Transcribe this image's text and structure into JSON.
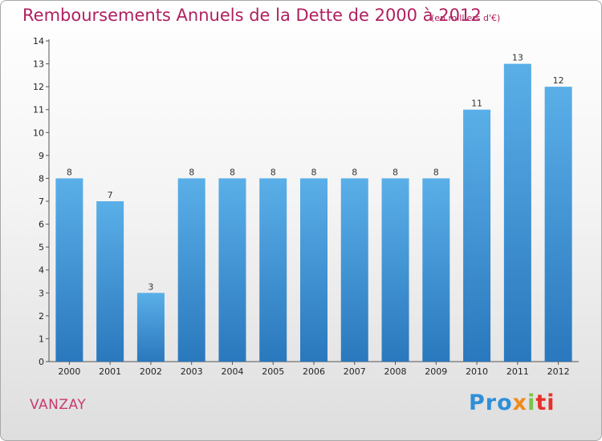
{
  "header": {
    "title": "Remboursements Annuels de la Dette de 2000 à 2012",
    "subtitle": "(en milliers d'€)"
  },
  "footer": {
    "commune": "VANZAY",
    "logo": {
      "p1": "Pro",
      "p2": "x",
      "p3": "i",
      "p4": "ti"
    }
  },
  "chart_data": {
    "type": "bar",
    "title": "Remboursements Annuels de la Dette de 2000 à 2012",
    "subtitle": "(en milliers d'€)",
    "categories": [
      "2000",
      "2001",
      "2002",
      "2003",
      "2004",
      "2005",
      "2006",
      "2007",
      "2008",
      "2009",
      "2010",
      "2011",
      "2012"
    ],
    "values": [
      8,
      7,
      3,
      8,
      8,
      8,
      8,
      8,
      8,
      8,
      11,
      13,
      12
    ],
    "value_labels": [
      "8",
      "7",
      "3",
      "8",
      "8",
      "8",
      "8",
      "8",
      "8",
      "8",
      "11",
      "13",
      "12"
    ],
    "ylim": [
      0,
      14
    ],
    "yticks": [
      "0",
      "1",
      "2",
      "3",
      "4",
      "5",
      "6",
      "7",
      "8",
      "9",
      "10",
      "11",
      "12",
      "13",
      "14"
    ],
    "grid": false,
    "colors": {
      "bar_top": "#5aafe8",
      "bar_bottom": "#2a78bd",
      "title": "#b02060"
    }
  }
}
